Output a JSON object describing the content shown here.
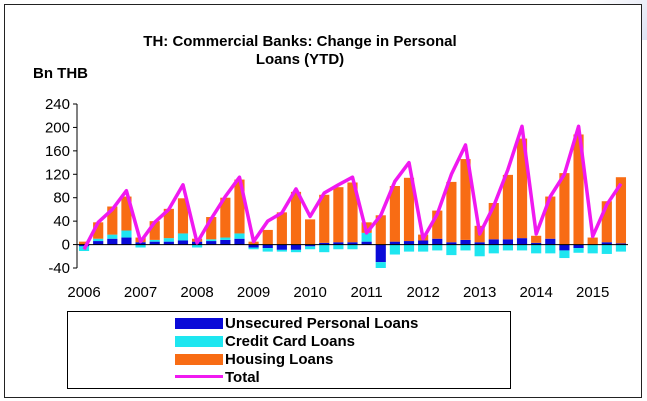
{
  "chart_data": {
    "type": "bar",
    "title": "TH: Commercial Banks: Change in Personal Loans (YTD)",
    "title_lines": [
      "TH: Commercial Banks: Change in Personal",
      "Loans (YTD)"
    ],
    "ylabel": "Bn THB",
    "ylim": [
      -40,
      240
    ],
    "yticks": [
      -40,
      0,
      40,
      80,
      120,
      160,
      200,
      240
    ],
    "xticks": [
      "2006",
      "2007",
      "2008",
      "2009",
      "2010",
      "2011",
      "2012",
      "2013",
      "2014",
      "2015"
    ],
    "stacked": true,
    "frequency": "quarterly",
    "legend_position": "bottom",
    "grid": false,
    "colors": {
      "Unsecured Personal Loans": "#0a0ad8",
      "Credit Card Loans": "#1ee6f0",
      "Housing Loans": "#f86c14",
      "Total": "#f019f0"
    },
    "categories": [
      "2006Q1",
      "2006Q2",
      "2006Q3",
      "2006Q4",
      "2007Q1",
      "2007Q2",
      "2007Q3",
      "2007Q4",
      "2008Q1",
      "2008Q2",
      "2008Q3",
      "2008Q4",
      "2009Q1",
      "2009Q2",
      "2009Q3",
      "2009Q4",
      "2010Q1",
      "2010Q2",
      "2010Q3",
      "2010Q4",
      "2011Q1",
      "2011Q2",
      "2011Q3",
      "2011Q4",
      "2012Q1",
      "2012Q2",
      "2012Q3",
      "2012Q4",
      "2013Q1",
      "2013Q2",
      "2013Q3",
      "2013Q4",
      "2014Q1",
      "2014Q2",
      "2014Q3",
      "2014Q4",
      "2015Q1",
      "2015Q2",
      "2015Q3"
    ],
    "series": [
      {
        "name": "Unsecured Personal Loans",
        "kind": "bar",
        "values": [
          -3,
          6,
          10,
          12,
          4,
          5,
          5,
          7,
          5,
          6,
          8,
          10,
          -5,
          -6,
          -9,
          -9,
          -3,
          3,
          4,
          4,
          5,
          -30,
          5,
          6,
          7,
          10,
          4,
          8,
          4,
          9,
          9,
          11,
          3,
          10,
          -10,
          -6,
          0,
          4,
          2
        ]
      },
      {
        "name": "Credit Card Loans",
        "kind": "bar",
        "values": [
          -8,
          4,
          7,
          12,
          -5,
          3,
          6,
          12,
          -5,
          3,
          4,
          9,
          -3,
          -6,
          -3,
          -4,
          -5,
          -13,
          -8,
          -8,
          15,
          -10,
          -17,
          -12,
          -12,
          -10,
          -18,
          -10,
          -20,
          -15,
          -10,
          -10,
          -15,
          -15,
          -13,
          -8,
          -15,
          -16,
          -12
        ]
      },
      {
        "name": "Housing Loans",
        "kind": "bar",
        "values": [
          5,
          28,
          48,
          58,
          8,
          32,
          50,
          60,
          5,
          38,
          68,
          92,
          5,
          25,
          55,
          90,
          43,
          82,
          94,
          102,
          18,
          50,
          95,
          108,
          10,
          48,
          103,
          138,
          28,
          62,
          110,
          170,
          12,
          72,
          122,
          188,
          12,
          70,
          113
        ]
      },
      {
        "name": "Total",
        "kind": "line",
        "values": [
          -8,
          38,
          60,
          92,
          5,
          38,
          60,
          102,
          3,
          44,
          82,
          115,
          5,
          40,
          54,
          95,
          48,
          88,
          102,
          115,
          20,
          50,
          108,
          140,
          10,
          52,
          120,
          170,
          18,
          66,
          128,
          202,
          18,
          82,
          120,
          202,
          14,
          68,
          104
        ]
      }
    ]
  }
}
